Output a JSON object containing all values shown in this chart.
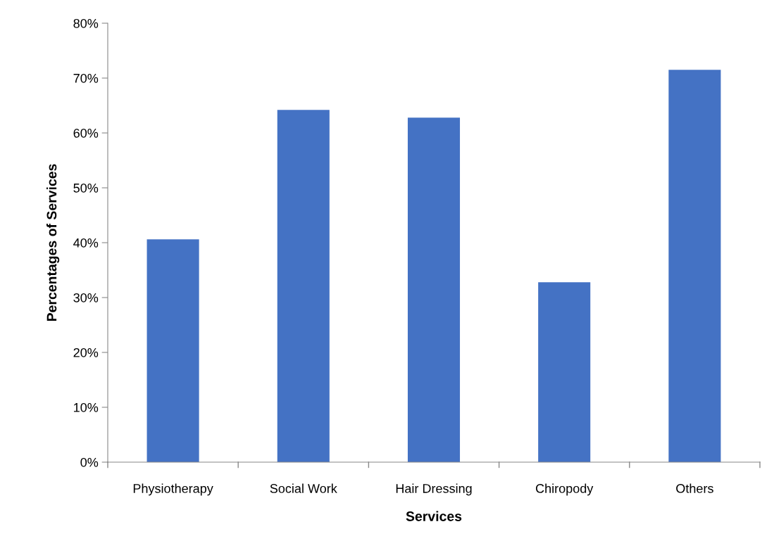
{
  "chart_data": {
    "type": "bar",
    "xlabel": "Services",
    "ylabel": "Percentages of Services",
    "categories": [
      "Physiotherapy",
      "Social Work",
      "Hair Dressing",
      "Chiropody",
      "Others"
    ],
    "values": [
      40.6,
      64.2,
      62.8,
      32.8,
      71.5
    ],
    "color": "#4472c4",
    "ylim": [
      0,
      80
    ],
    "yticks": [
      {
        "value": 0,
        "label": "0%"
      },
      {
        "value": 10,
        "label": "10%"
      },
      {
        "value": 20,
        "label": "20%"
      },
      {
        "value": 30,
        "label": "30%"
      },
      {
        "value": 40,
        "label": "40%"
      },
      {
        "value": 50,
        "label": "50%"
      },
      {
        "value": 60,
        "label": "60%"
      },
      {
        "value": 70,
        "label": "70%"
      },
      {
        "value": 80,
        "label": "80%"
      }
    ],
    "grid": false,
    "legend": false
  }
}
